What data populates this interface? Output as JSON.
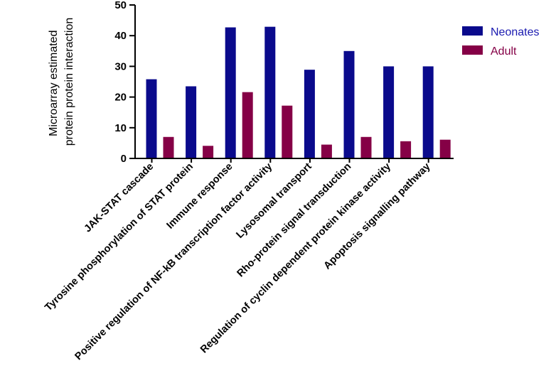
{
  "chart_data": {
    "type": "bar",
    "title": "",
    "xlabel": "",
    "ylabel": "Microarray estimated protein protein interaction",
    "ylabel_lines": [
      "Microarray estimated",
      "protein protein interaction"
    ],
    "ylim": [
      0,
      50
    ],
    "yticks": [
      "0",
      "10",
      "20",
      "30",
      "40",
      "50"
    ],
    "legend_position": "top-right",
    "grid": false,
    "categories": [
      "JAK-STAT cascade",
      "Tyrosine phosphorylation of STAT protein",
      "Immune response",
      "Positive regulation of NF-kB transcription factor activity",
      "Lysosomal transport",
      "Rho-protein signal transduction",
      "Regulation of cyclin dependent protein kinase activity",
      "Apoptosis signalling pathway"
    ],
    "series": [
      {
        "name": "Neonates",
        "color": "#0a0a8c",
        "values": [
          25.8,
          23.5,
          42.7,
          42.9,
          28.9,
          35.0,
          30.0,
          30.0
        ]
      },
      {
        "name": "Adult",
        "color": "#850046",
        "values": [
          7.0,
          4.1,
          21.6,
          17.2,
          4.5,
          7.0,
          5.6,
          6.1
        ]
      }
    ]
  }
}
